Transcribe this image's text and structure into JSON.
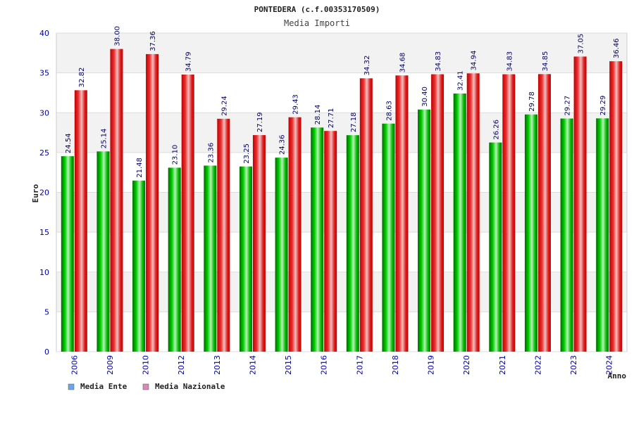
{
  "chart_data": {
    "type": "bar",
    "title": "PONTEDERA (c.f.00353170509)",
    "subtitle": "Media Importi",
    "xlabel": "Anno",
    "ylabel": "Euro",
    "ylim": [
      0,
      40
    ],
    "yticks": [
      0,
      5,
      10,
      15,
      20,
      25,
      30,
      35,
      40
    ],
    "ytick_labels": [
      "0",
      "5",
      "10",
      "15",
      "20",
      "25",
      "30",
      "35",
      "40"
    ],
    "grid": true,
    "legend_position": "bottom-left",
    "categories": [
      "2006",
      "2009",
      "2010",
      "2012",
      "2013",
      "2014",
      "2015",
      "2016",
      "2017",
      "2018",
      "2019",
      "2020",
      "2021",
      "2022",
      "2023",
      "2024"
    ],
    "series": [
      {
        "name": "Media Ente",
        "color": "#00b000",
        "legend_color": "#6aa6e8",
        "values": [
          24.54,
          25.14,
          21.48,
          23.1,
          23.36,
          23.25,
          24.36,
          28.14,
          27.18,
          28.63,
          30.4,
          32.41,
          26.26,
          29.78,
          29.27,
          29.29
        ],
        "labels": [
          "24.54",
          "25.14",
          "21.48",
          "23.10",
          "23.36",
          "23.25",
          "24.36",
          "28.14",
          "27.18",
          "28.63",
          "30.40",
          "32.41",
          "26.26",
          "29.78",
          "29.27",
          "29.29"
        ]
      },
      {
        "name": "Media Nazionale",
        "color": "#e00000",
        "legend_color": "#d88ab4",
        "values": [
          32.82,
          38.0,
          37.36,
          34.79,
          29.24,
          27.19,
          29.43,
          27.71,
          34.32,
          34.68,
          34.83,
          34.94,
          34.83,
          34.85,
          37.05,
          36.46
        ],
        "labels": [
          "32.82",
          "38.00",
          "37.36",
          "34.79",
          "29.24",
          "27.19",
          "29.43",
          "27.71",
          "34.32",
          "34.68",
          "34.83",
          "34.94",
          "34.83",
          "34.85",
          "37.05",
          "36.46"
        ]
      }
    ]
  }
}
